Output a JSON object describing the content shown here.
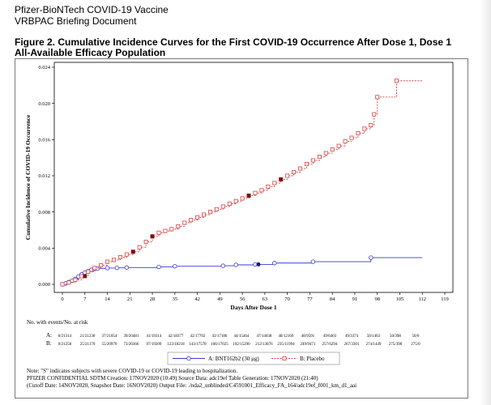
{
  "header": {
    "line1": "Pfizer-BioNTech COVID-19 Vaccine",
    "line2": "VRBPAC Briefing Document",
    "figure_title_1": "Figure 2. Cumulative Incidence Curves for the First COVID-19 Occurrence After Dose 1, Dose 1",
    "figure_title_2": "All-Available Efficacy Population"
  },
  "chart_data": {
    "type": "line",
    "xlabel": "Days After Dose 1",
    "ylabel": "Cumulative Incidence of COVID-19 Occurrence",
    "xlim": [
      0,
      119
    ],
    "ylim": [
      0,
      0.024
    ],
    "x_ticks": [
      0,
      7,
      14,
      21,
      28,
      35,
      42,
      49,
      56,
      63,
      70,
      77,
      84,
      91,
      98,
      105,
      112,
      119
    ],
    "y_ticks": [
      "0.000",
      "0.004",
      "0.008",
      "0.012",
      "0.016",
      "0.020",
      "0.024"
    ],
    "series": [
      {
        "name": "A: BNT162b2 (30 μg)",
        "color": "#3a3ad6",
        "marker": "circle",
        "points": [
          [
            0,
            0
          ],
          [
            1,
            0.0001
          ],
          [
            2,
            0.00025
          ],
          [
            3,
            0.0004
          ],
          [
            4,
            0.0006
          ],
          [
            5,
            0.00085
          ],
          [
            6,
            0.0011
          ],
          [
            7,
            0.0013
          ],
          [
            8,
            0.00145
          ],
          [
            9,
            0.0016
          ],
          [
            10,
            0.0017
          ],
          [
            11,
            0.00175
          ],
          [
            14,
            0.0018
          ],
          [
            17,
            0.00182
          ],
          [
            20,
            0.00185
          ],
          [
            30,
            0.00192
          ],
          [
            35,
            0.002
          ],
          [
            50,
            0.00205
          ],
          [
            54,
            0.00215
          ],
          [
            60,
            0.0022
          ],
          [
            66,
            0.00235
          ],
          [
            78,
            0.0025
          ],
          [
            96,
            0.00295
          ],
          [
            112,
            0.00295
          ]
        ],
        "severe_x": [
          61
        ]
      },
      {
        "name": "B: Placebo",
        "color": "#d94040",
        "marker": "square",
        "points": [
          [
            0,
            0
          ],
          [
            2,
            0.0002
          ],
          [
            4,
            0.0005
          ],
          [
            6,
            0.0009
          ],
          [
            8,
            0.0014
          ],
          [
            10,
            0.0018
          ],
          [
            12,
            0.0021
          ],
          [
            14,
            0.0025
          ],
          [
            16,
            0.0027
          ],
          [
            18,
            0.003
          ],
          [
            20,
            0.0033
          ],
          [
            22,
            0.0036
          ],
          [
            24,
            0.0041
          ],
          [
            26,
            0.0047
          ],
          [
            28,
            0.0053
          ],
          [
            30,
            0.0057
          ],
          [
            32,
            0.0059
          ],
          [
            34,
            0.0061
          ],
          [
            36,
            0.0064
          ],
          [
            38,
            0.0068
          ],
          [
            40,
            0.0071
          ],
          [
            42,
            0.0074
          ],
          [
            44,
            0.0077
          ],
          [
            46,
            0.008
          ],
          [
            48,
            0.0083
          ],
          [
            50,
            0.0086
          ],
          [
            52,
            0.0089
          ],
          [
            54,
            0.0092
          ],
          [
            56,
            0.0095
          ],
          [
            58,
            0.0098
          ],
          [
            60,
            0.0101
          ],
          [
            62,
            0.0104
          ],
          [
            64,
            0.0108
          ],
          [
            66,
            0.0112
          ],
          [
            68,
            0.0116
          ],
          [
            70,
            0.012
          ],
          [
            72,
            0.0124
          ],
          [
            74,
            0.0128
          ],
          [
            76,
            0.0133
          ],
          [
            78,
            0.0137
          ],
          [
            80,
            0.0141
          ],
          [
            82,
            0.0145
          ],
          [
            84,
            0.0149
          ],
          [
            86,
            0.0153
          ],
          [
            88,
            0.0158
          ],
          [
            90,
            0.0162
          ],
          [
            92,
            0.0167
          ],
          [
            94,
            0.0172
          ],
          [
            96,
            0.0176
          ],
          [
            97,
            0.0188
          ],
          [
            98,
            0.0207
          ],
          [
            104,
            0.0225
          ],
          [
            112,
            0.0225
          ]
        ],
        "severe_x": [
          7,
          22,
          28,
          58,
          68
        ]
      }
    ],
    "at_risk": {
      "title": "No. with events/No. at risk",
      "rows": [
        {
          "label": "A:",
          "values": [
            "0/21314",
            "21/21230",
            "37/21054",
            "39/20481",
            "41/19314",
            "42/18377",
            "42/17702",
            "43/17186",
            "44/15464",
            "47/14038",
            "48/12169",
            "48/9591",
            "49/6403",
            "49/3374",
            "50/1463",
            "50/398",
            "50/0"
          ]
        },
        {
          "label": "B:",
          "values": [
            "0/21258",
            "25/21170",
            "55/20970",
            "73/20366",
            "97/19209",
            "123/18218",
            "143/17578",
            "166/17025",
            "192/15290",
            "212/13876",
            "235/11994",
            "249/9471",
            "257/6294",
            "267/3301",
            "274/1449",
            "275/398",
            "275/0"
          ]
        }
      ]
    },
    "legend": {
      "a": "A: BNT162b2 (30 μg)",
      "b": "B: Placebo",
      "placement": "bottom-center"
    },
    "annotations": [
      "Note: \"S\" indicates subjects with severe COVID-19 or COVID-19 leading to hospitalization.",
      "PFIZER CONFIDENTIAL  SDTM Creation: 17NOV2020 (10:49)  Source Data: adc19ef  Table Generation: 17NOV2020 (21:40)",
      "(Cutoff Date: 14NOV2020, Snapshot Date: 16NOV2020) Output File: ./nda2_unblinded/C4591001_Efficacy_FA_164/adc19ef_f001_km_d1_aai"
    ]
  }
}
